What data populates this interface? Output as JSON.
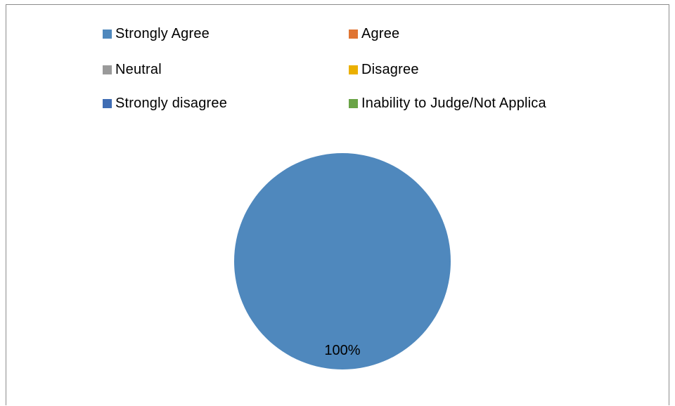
{
  "chart_data": {
    "type": "pie",
    "title": "",
    "legend_position": "top",
    "categories": [
      "Strongly Agree",
      "Agree",
      "Neutral",
      "Disagree",
      "Strongly disagree",
      "Inability to Judge/Not Applica"
    ],
    "values": [
      100,
      0,
      0,
      0,
      0,
      0
    ],
    "colors": [
      "#4f88bd",
      "#e07533",
      "#9a9a9a",
      "#ebb000",
      "#3f6db4",
      "#6aa446"
    ],
    "data_labels": [
      "100%",
      "",
      "",
      "",
      "",
      ""
    ]
  }
}
